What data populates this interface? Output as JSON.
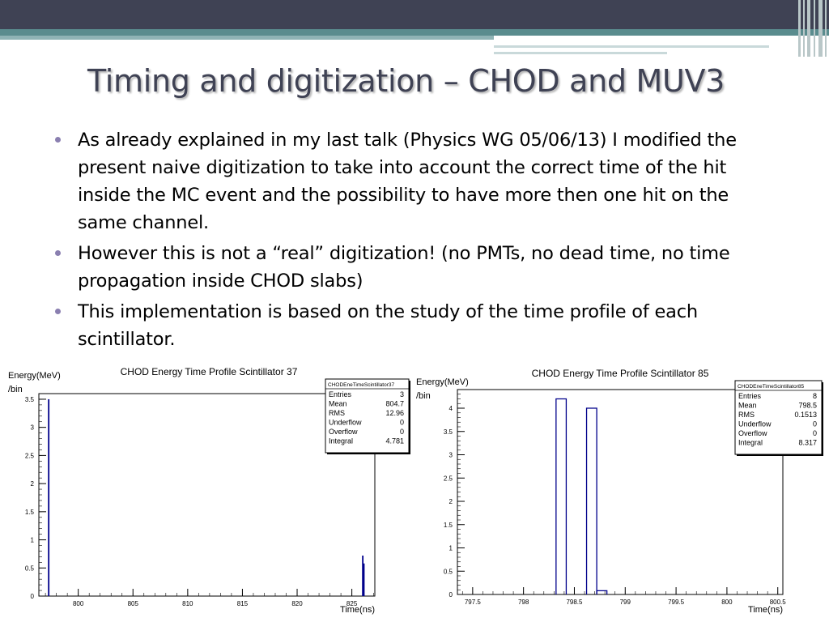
{
  "slide": {
    "title": "Timing and digitization – CHOD and MUV3",
    "bullets": [
      "As already explained in my last talk (Physics WG 05/06/13) I modified the present naive digitization to take into account the correct time of the hit inside the MC event and the possibility to have more then one hit on the same channel.",
      "However this is not a “real” digitization! (no PMTs, no dead time, no time propagation inside CHOD slabs)",
      "This implementation is based on the study of the time profile of each scintillator."
    ]
  },
  "chart_data": [
    {
      "type": "bar",
      "title": "CHOD Energy Time Profile Scintillator 37",
      "ylabel": "Energy(MeV)\n/bin",
      "xlabel": "Time(ns)",
      "xlim": [
        796.4,
        827.1
      ],
      "ylim": [
        0,
        3.6
      ],
      "xticks": [
        "800",
        "805",
        "810",
        "815",
        "820",
        "825"
      ],
      "yticks": [
        "0",
        "0.5",
        "1",
        "1.5",
        "2",
        "2.5",
        "3",
        "3.5"
      ],
      "bins": [
        {
          "x": 797.3,
          "y": 3.5
        },
        {
          "x": 826.0,
          "y": 0.72
        },
        {
          "x": 826.1,
          "y": 0.58
        }
      ],
      "stats": {
        "name": "CHODEneTimeScintillator37",
        "rows": [
          {
            "label": "Entries",
            "value": "3"
          },
          {
            "label": "Mean",
            "value": "804.7"
          },
          {
            "label": "RMS",
            "value": "12.96"
          },
          {
            "label": "Underflow",
            "value": "0"
          },
          {
            "label": "Overflow",
            "value": "0"
          },
          {
            "label": "Integral",
            "value": "4.781"
          }
        ]
      }
    },
    {
      "type": "bar",
      "title": "CHOD Energy Time Profile Scintillator 85",
      "ylabel": "Energy(MeV)\n/bin",
      "xlabel": "Time(ns)",
      "xlim": [
        797.35,
        800.55
      ],
      "ylim": [
        0,
        4.4
      ],
      "xticks": [
        "797.5",
        "798",
        "798.5",
        "799",
        "799.5",
        "800",
        "800.5"
      ],
      "yticks": [
        "0",
        "0.5",
        "1",
        "1.5",
        "2",
        "2.5",
        "3",
        "3.5",
        "4"
      ],
      "bins": [
        {
          "x0": 798.32,
          "x1": 798.42,
          "y": 4.2
        },
        {
          "x0": 798.62,
          "x1": 798.72,
          "y": 4.0
        },
        {
          "x0": 798.72,
          "x1": 798.82,
          "y": 0.08
        }
      ],
      "stats": {
        "name": "CHODEneTimeScintillator85",
        "rows": [
          {
            "label": "Entries",
            "value": "8"
          },
          {
            "label": "Mean",
            "value": "798.5"
          },
          {
            "label": "RMS",
            "value": "0.1513"
          },
          {
            "label": "Underflow",
            "value": "0"
          },
          {
            "label": "Overflow",
            "value": "0"
          },
          {
            "label": "Integral",
            "value": "8.317"
          }
        ]
      }
    }
  ]
}
